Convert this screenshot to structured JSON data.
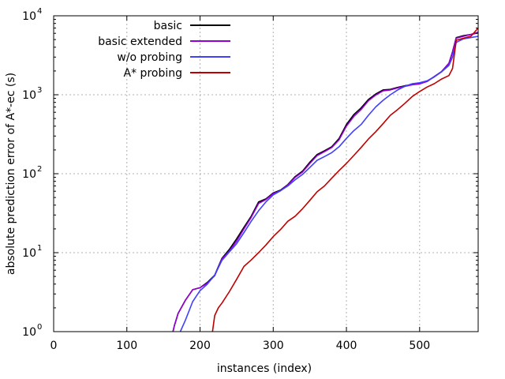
{
  "chart_data": {
    "type": "line",
    "title": "",
    "xlabel": "instances (index)",
    "ylabel": "absolute prediction error of A*-ec (s)",
    "xlim": [
      0,
      580
    ],
    "ylim": [
      1,
      10000
    ],
    "y_scale": "log",
    "grid": true,
    "legend_position": "top-left",
    "x_ticks": [
      {
        "value": 0,
        "label": "0"
      },
      {
        "value": 100,
        "label": "100"
      },
      {
        "value": 200,
        "label": "200"
      },
      {
        "value": 300,
        "label": "300"
      },
      {
        "value": 400,
        "label": "400"
      },
      {
        "value": 500,
        "label": "500"
      }
    ],
    "y_ticks": [
      {
        "value": 1,
        "base": "10",
        "exp": "0"
      },
      {
        "value": 10,
        "base": "10",
        "exp": "1"
      },
      {
        "value": 100,
        "base": "10",
        "exp": "2"
      },
      {
        "value": 1000,
        "base": "10",
        "exp": "3"
      },
      {
        "value": 10000,
        "base": "10",
        "exp": "4"
      }
    ],
    "series": [
      {
        "name": "basic",
        "color": "#000000",
        "x": [
          163,
          165,
          170,
          180,
          190,
          200,
          210,
          220,
          230,
          240,
          250,
          260,
          270,
          280,
          290,
          300,
          310,
          320,
          330,
          340,
          350,
          360,
          370,
          380,
          390,
          400,
          410,
          420,
          430,
          440,
          450,
          460,
          470,
          480,
          490,
          500,
          510,
          520,
          530,
          540,
          545,
          550,
          560,
          570,
          580
        ],
        "y": [
          1.0,
          1.2,
          1.7,
          2.5,
          3.4,
          3.6,
          4.2,
          5.2,
          8.5,
          11,
          15,
          21,
          29,
          44,
          48,
          57,
          62,
          73,
          92,
          108,
          140,
          175,
          195,
          220,
          280,
          420,
          560,
          680,
          870,
          1020,
          1150,
          1170,
          1240,
          1300,
          1350,
          1380,
          1480,
          1700,
          1970,
          2500,
          3500,
          5300,
          5600,
          5800,
          6100
        ]
      },
      {
        "name": "basic extended",
        "color": "#9400d3",
        "x": [
          163,
          165,
          170,
          180,
          190,
          200,
          210,
          220,
          230,
          240,
          250,
          260,
          270,
          280,
          290,
          300,
          310,
          320,
          330,
          340,
          350,
          360,
          370,
          380,
          390,
          400,
          410,
          420,
          430,
          440,
          450,
          460,
          470,
          480,
          490,
          500,
          510,
          520,
          530,
          540,
          545,
          550,
          560,
          570,
          580
        ],
        "y": [
          1.0,
          1.2,
          1.7,
          2.5,
          3.4,
          3.6,
          4.1,
          5.1,
          8.3,
          10.5,
          14,
          20,
          28,
          42,
          47,
          56,
          61,
          72,
          90,
          105,
          135,
          170,
          190,
          215,
          270,
          400,
          530,
          650,
          840,
          990,
          1120,
          1150,
          1220,
          1280,
          1340,
          1370,
          1470,
          1690,
          1960,
          2480,
          3450,
          5200,
          5500,
          5800,
          6200
        ]
      },
      {
        "name": "w/o probing",
        "color": "#4040ff",
        "x": [
          173,
          180,
          190,
          200,
          210,
          220,
          230,
          240,
          250,
          260,
          270,
          280,
          290,
          300,
          310,
          320,
          330,
          340,
          350,
          360,
          370,
          380,
          390,
          400,
          410,
          420,
          430,
          440,
          450,
          460,
          470,
          480,
          490,
          500,
          510,
          520,
          530,
          540,
          545,
          550,
          560,
          570,
          580
        ],
        "y": [
          1.0,
          1.4,
          2.4,
          3.3,
          4.0,
          5.2,
          8.0,
          10.2,
          13,
          18,
          25,
          34,
          44,
          54,
          61,
          70,
          84,
          98,
          120,
          148,
          165,
          185,
          220,
          280,
          350,
          420,
          550,
          700,
          850,
          1000,
          1150,
          1280,
          1380,
          1420,
          1500,
          1680,
          1950,
          2350,
          3000,
          4600,
          5100,
          5300,
          5500
        ]
      },
      {
        "name": "A* probing",
        "color": "#c00000",
        "x": [
          217,
          220,
          225,
          230,
          240,
          250,
          260,
          270,
          280,
          290,
          300,
          310,
          320,
          330,
          340,
          350,
          360,
          370,
          380,
          390,
          400,
          410,
          420,
          430,
          440,
          450,
          460,
          470,
          480,
          490,
          500,
          510,
          520,
          530,
          540,
          545,
          550,
          560,
          570,
          580
        ],
        "y": [
          1.0,
          1.6,
          2.0,
          2.3,
          3.2,
          4.6,
          6.7,
          8.1,
          10,
          12.5,
          16,
          19.7,
          25,
          29,
          36,
          46,
          59,
          70,
          88,
          110,
          135,
          170,
          215,
          275,
          340,
          430,
          550,
          650,
          780,
          950,
          1100,
          1250,
          1380,
          1580,
          1750,
          2150,
          4900,
          5200,
          5500,
          7000
        ]
      }
    ]
  }
}
